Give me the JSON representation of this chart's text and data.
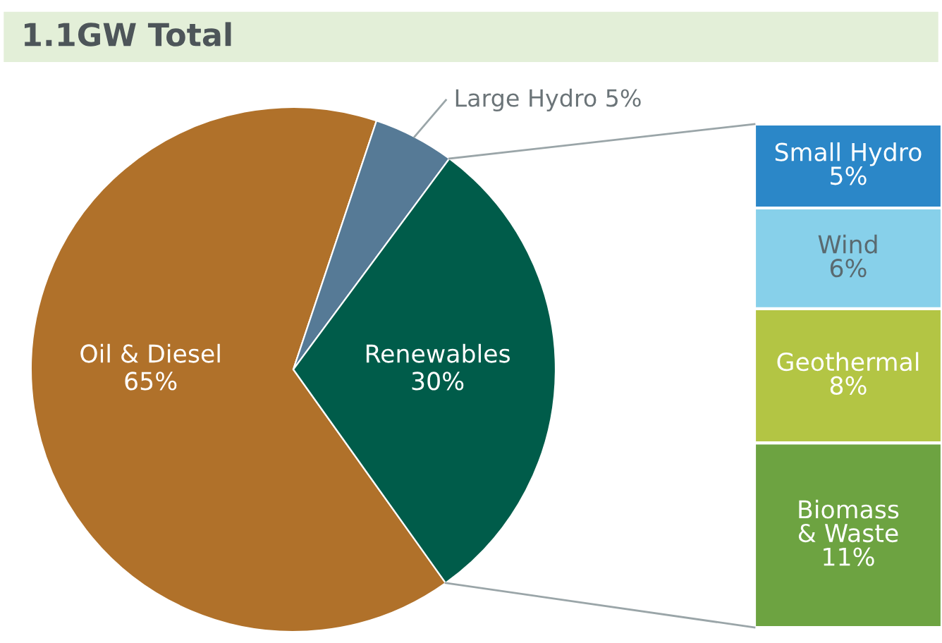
{
  "chart_data": [
    {
      "type": "pie",
      "title": "1.1GW Total",
      "categories": [
        "Oil & Diesel",
        "Large Hydro",
        "Renewables"
      ],
      "values": [
        65,
        5,
        30
      ],
      "value_labels": [
        "65%",
        "5%",
        "30%"
      ],
      "colors": [
        "#b0712a",
        "#567a96",
        "#005c4a"
      ]
    },
    {
      "type": "bar",
      "stacked": true,
      "categories": [
        null
      ],
      "series": [
        {
          "name": "Biomass & Waste",
          "color": "#6da341",
          "values": [
            11
          ],
          "value_labels": [
            "11%"
          ]
        },
        {
          "name": "Geothermal",
          "color": "#b3c544",
          "values": [
            8
          ],
          "value_labels": [
            "8%"
          ]
        },
        {
          "name": "Wind",
          "color": "#87d0ea",
          "values": [
            6
          ],
          "value_labels": [
            "6%"
          ]
        },
        {
          "name": "Small Hydro",
          "color": "#2b87c8",
          "values": [
            5
          ],
          "value_labels": [
            "5%"
          ]
        }
      ]
    }
  ]
}
